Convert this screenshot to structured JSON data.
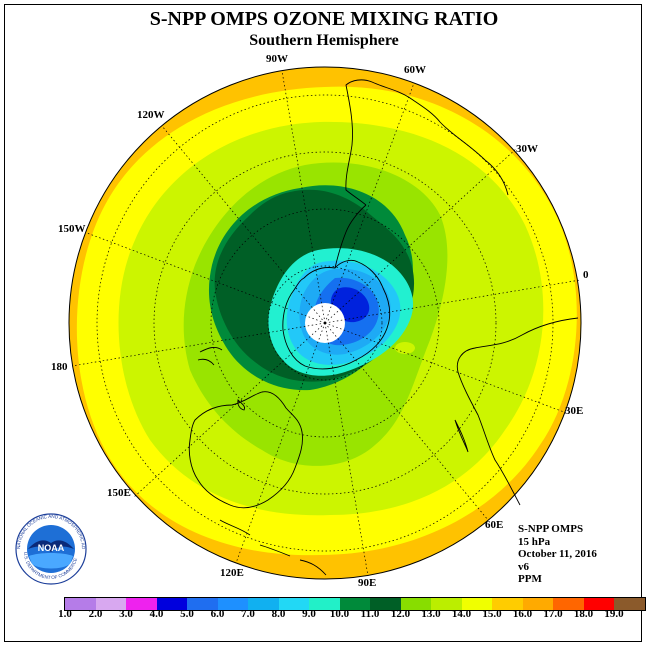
{
  "title": "S-NPP OMPS OZONE MIXING RATIO",
  "subtitle": "Southern Hemisphere",
  "longitude_labels": [
    "90W",
    "60W",
    "30W",
    "0",
    "30E",
    "60E",
    "90E",
    "120E",
    "150E",
    "180",
    "150W",
    "120W"
  ],
  "info": {
    "instrument": "S-NPP OMPS",
    "level": "15 hPa",
    "date": "October 11, 2016",
    "version": "v6",
    "units": "PPM"
  },
  "logo": {
    "text": "NOAA",
    "ring_text": "NATIONAL OCEANIC AND ATMOSPHERIC ADMINISTRATION",
    "bottom_text": "U.S. DEPARTMENT OF COMMERCE"
  },
  "colorbar": {
    "labels": [
      "1.0",
      "2.0",
      "3.0",
      "4.0",
      "5.0",
      "6.0",
      "7.0",
      "8.0",
      "9.0",
      "10.0",
      "11.0",
      "12.0",
      "13.0",
      "14.0",
      "15.0",
      "16.0",
      "17.0",
      "18.0",
      "19.0"
    ],
    "colors": [
      "#b57ce8",
      "#d8a8f0",
      "#ee22ee",
      "#0000dd",
      "#1f6ef0",
      "#1e90ff",
      "#11b0f0",
      "#22d8f5",
      "#22f0c8",
      "#008a3a",
      "#005f26",
      "#88dd00",
      "#bbee00",
      "#f0ff00",
      "#ffcc00",
      "#ffaa00",
      "#ff6600",
      "#ff0000",
      "#8b5a2b"
    ]
  },
  "map_colors": {
    "outer": "#ffc200",
    "yellow": "#ffff00",
    "yellow_green": "#ccf500",
    "light_green": "#99e400",
    "mid_green": "#008a3a",
    "dark_green": "#005f26",
    "cyan": "#22f0d0",
    "sky": "#22c8f8",
    "light_blue": "#1eaaf5",
    "blue": "#1570f0",
    "dark_blue": "#0022dd",
    "pole": "#ffffff"
  }
}
